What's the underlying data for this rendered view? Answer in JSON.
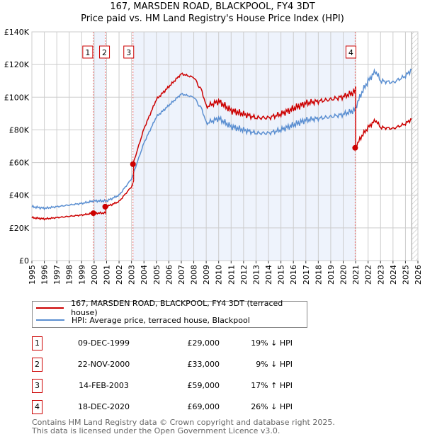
{
  "chart_data": {
    "type": "line",
    "title": "167, MARSDEN ROAD, BLACKPOOL, FY4 3DT",
    "subtitle": "Price paid vs. HM Land Registry's House Price Index (HPI)",
    "xlim": [
      1995,
      2026
    ],
    "ylim": [
      0,
      140000
    ],
    "x_ticks": [
      "1995",
      "1996",
      "1997",
      "1998",
      "1999",
      "2000",
      "2001",
      "2002",
      "2003",
      "2004",
      "2005",
      "2006",
      "2007",
      "2008",
      "2009",
      "2010",
      "2011",
      "2012",
      "2013",
      "2014",
      "2015",
      "2016",
      "2017",
      "2018",
      "2019",
      "2020",
      "2021",
      "2022",
      "2023",
      "2024",
      "2025",
      "2026"
    ],
    "y_ticks": [
      "£0",
      "£20K",
      "£40K",
      "£60K",
      "£80K",
      "£100K",
      "£120K",
      "£140K"
    ],
    "grid": true,
    "series": [
      {
        "name": "167, MARSDEN ROAD, BLACKPOOL, FY4 3DT (terraced house)",
        "color": "#cc0000"
      },
      {
        "name": "HPI: Average price, terraced house, Blackpool",
        "color": "#5b8fd1",
        "x": [
          1995,
          1996,
          1997,
          1998,
          1999,
          2000,
          2001,
          2002,
          2003,
          2004,
          2005,
          2006,
          2007,
          2008,
          2008.7,
          2009,
          2010,
          2011,
          2012,
          2013,
          2014,
          2015,
          2016,
          2017,
          2018,
          2019,
          2020,
          2020.9,
          2021.5,
          2022,
          2022.6,
          2023,
          2024,
          2025,
          2025.5
        ],
        "values": [
          33,
          32,
          33,
          34,
          35,
          36.5,
          36.5,
          40,
          50,
          72,
          88,
          95,
          102,
          100,
          92,
          84,
          87,
          82,
          80,
          78,
          78,
          80,
          83,
          86,
          87,
          88,
          89.5,
          92,
          103,
          110,
          116,
          110,
          109,
          113,
          117
        ]
      }
    ],
    "sales": [
      {
        "id": "1",
        "x": 1999.94,
        "date": "09-DEC-1999",
        "price": "£29,000",
        "value": 29,
        "hpi": "19% ↓ HPI"
      },
      {
        "id": "2",
        "x": 2000.89,
        "date": "22-NOV-2000",
        "price": "£33,000",
        "value": 33,
        "hpi": "9% ↓ HPI"
      },
      {
        "id": "3",
        "x": 2003.12,
        "date": "14-FEB-2003",
        "price": "£59,000",
        "value": 59,
        "hpi": "17% ↑ HPI"
      },
      {
        "id": "4",
        "x": 2020.96,
        "date": "18-DEC-2020",
        "price": "£69,000",
        "value": 69,
        "hpi": "26% ↓ HPI"
      }
    ],
    "hatched_from": 2025.5
  },
  "footer": {
    "line1": "Contains HM Land Registry data © Crown copyright and database right 2025.",
    "line2": "This data is licensed under the Open Government Licence v3.0."
  }
}
